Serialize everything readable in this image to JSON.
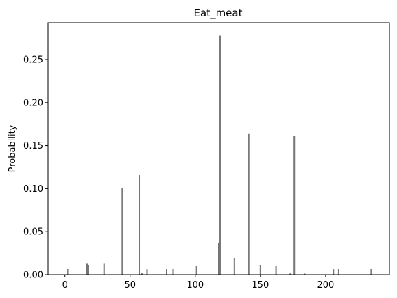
{
  "chart_data": {
    "type": "bar",
    "title": "Eat_meat",
    "xlabel": "",
    "ylabel": "Probability",
    "xlim": [
      -13,
      249
    ],
    "ylim": [
      0,
      0.293
    ],
    "x_ticks": [
      0,
      50,
      100,
      150,
      200
    ],
    "y_ticks": [
      0.0,
      0.05,
      0.1,
      0.15,
      0.2,
      0.25
    ],
    "y_tick_labels": [
      "0.00",
      "0.05",
      "0.10",
      "0.15",
      "0.20",
      "0.25"
    ],
    "grid": false,
    "bar_color": "#808080",
    "bar_edge_color": "#555555",
    "x": [
      2,
      17,
      18,
      30,
      44,
      57,
      59,
      63,
      78,
      83,
      101,
      118,
      119,
      130,
      141,
      150,
      162,
      173,
      176,
      184,
      206,
      210,
      235
    ],
    "values": [
      0.007,
      0.013,
      0.011,
      0.013,
      0.101,
      0.116,
      0.002,
      0.006,
      0.007,
      0.007,
      0.01,
      0.037,
      0.278,
      0.019,
      0.164,
      0.011,
      0.01,
      0.002,
      0.161,
      0.001,
      0.006,
      0.007,
      0.007
    ]
  }
}
